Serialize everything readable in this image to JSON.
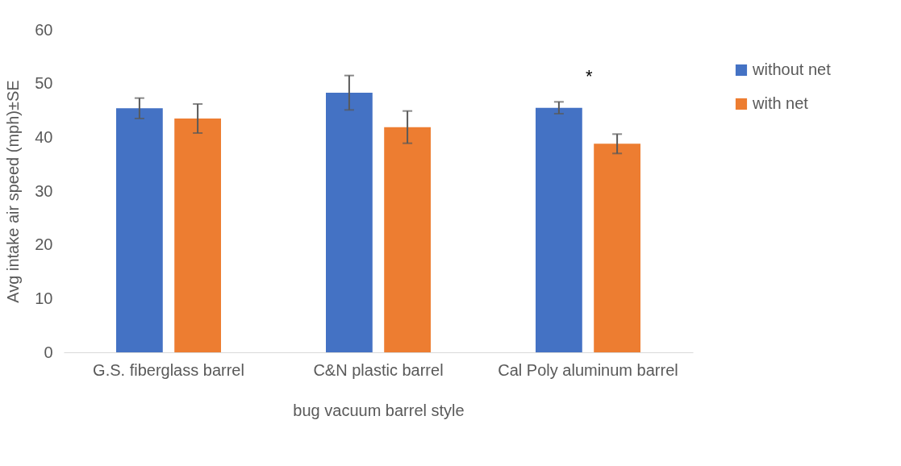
{
  "chart_data": {
    "type": "bar",
    "xlabel": "bug vacuum barrel style",
    "ylabel": "Avg intake air speed (mph)±SE",
    "categories": [
      "G.S. fiberglass barrel",
      "C&N plastic barrel",
      "Cal Poly aluminum barrel"
    ],
    "series": [
      {
        "name": "without net",
        "color": "#4472c4",
        "values": [
          45.4,
          48.3,
          45.5
        ],
        "errors": [
          1.9,
          3.2,
          1.1
        ]
      },
      {
        "name": "with net",
        "color": "#ed7d31",
        "values": [
          43.5,
          41.9,
          38.8
        ],
        "errors": [
          2.7,
          3.0,
          1.8
        ]
      }
    ],
    "ylim": [
      0,
      60
    ],
    "yticks": [
      0,
      10,
      20,
      30,
      40,
      50,
      60
    ],
    "grid": false,
    "legend": "right",
    "annotations": [
      "*"
    ]
  }
}
